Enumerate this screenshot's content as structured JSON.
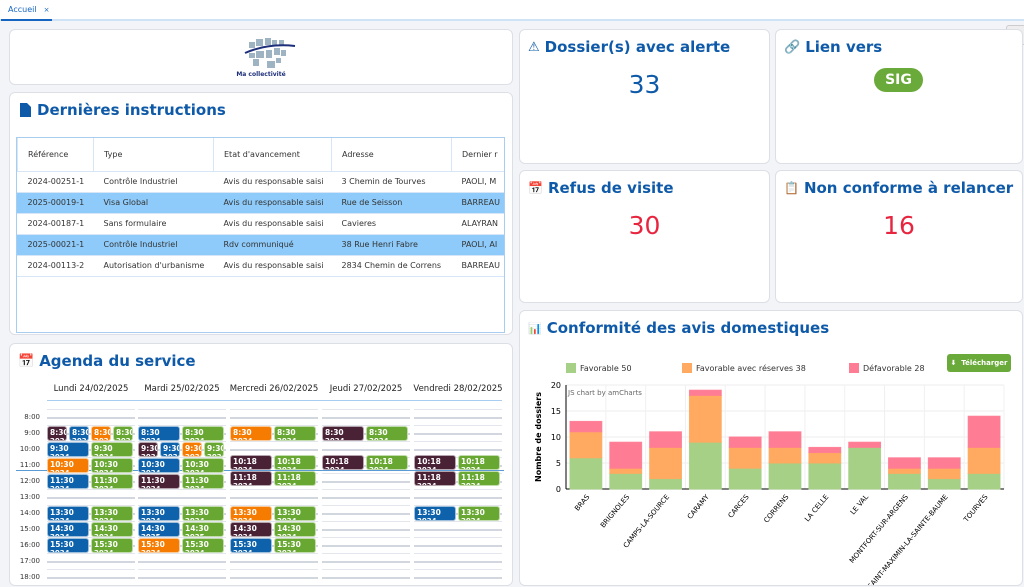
{
  "tabs": [
    {
      "label": "Accueil",
      "close": "×"
    }
  ],
  "logo": {
    "text": "Ma collectivité"
  },
  "instructions": {
    "title": "Dernières instructions",
    "columns": [
      "Référence",
      "Type",
      "Etat d'avancement",
      "Adresse",
      "Dernier r"
    ],
    "rows": [
      {
        "cells": [
          "2024-00251-1",
          "Contrôle Industriel",
          "Avis du responsable saisi",
          "3 Chemin de Tourves",
          "PAOLI, M"
        ],
        "selected": false
      },
      {
        "cells": [
          "2025-00019-1",
          "Visa Global",
          "Avis du responsable saisi",
          "Rue de Seisson",
          "BARREAU"
        ],
        "selected": true
      },
      {
        "cells": [
          "2024-00187-1",
          "Sans formulaire",
          "Avis du responsable saisi",
          "Cavieres",
          "ALAYRAN"
        ],
        "selected": false
      },
      {
        "cells": [
          "2025-00021-1",
          "Contrôle Industriel",
          "Rdv communiqué",
          "38 Rue Henri Fabre",
          "PAOLI, AI"
        ],
        "selected": true
      },
      {
        "cells": [
          "2024-00113-2",
          "Autorisation d'urbanisme",
          "Avis du responsable saisi",
          "2834 Chemin de Correns",
          "BARREAU"
        ],
        "selected": false
      }
    ]
  },
  "alerts": {
    "title": "Dossier(s) avec alerte",
    "value": "33",
    "color": "#0f5aa8"
  },
  "link": {
    "title": "Lien vers",
    "button": "SIG"
  },
  "refus": {
    "title": "Refus de visite",
    "value": "30",
    "color": "#e8253f"
  },
  "nonconforme": {
    "title": "Non conforme à relancer",
    "value": "16",
    "color": "#e8253f"
  },
  "agenda": {
    "title": "Agenda du service",
    "hours": [
      "8:00",
      "9:00",
      "10:00",
      "11:00",
      "12:00",
      "13:00",
      "14:00",
      "15:00",
      "16:00",
      "17:00",
      "18:00"
    ],
    "colors": {
      "dark": "#4a2236",
      "blue": "#0d62ab",
      "orange": "#f57c00",
      "green": "#68a832"
    },
    "days": [
      {
        "label": "Lundi 24/02/2025",
        "events": [
          [
            "8:30",
            "dark",
            "2024..."
          ],
          [
            "8:30",
            "blue",
            "2024..."
          ],
          [
            "8:30",
            "orange",
            "2024..."
          ],
          [
            "8:30",
            "green",
            "2024..."
          ],
          [
            "9:30",
            "blue",
            "2024..."
          ],
          [
            "9:30",
            "green",
            "2024..."
          ],
          [
            "10:30",
            "orange",
            "2024..."
          ],
          [
            "10:30",
            "green",
            "2024..."
          ],
          [
            "11:30",
            "blue",
            "2024..."
          ],
          [
            "11:30",
            "green",
            "2024..."
          ],
          [
            "13:30",
            "blue",
            "2024..."
          ],
          [
            "13:30",
            "green",
            "2024..."
          ],
          [
            "14:30",
            "blue",
            "2024..."
          ],
          [
            "14:30",
            "green",
            "2024..."
          ],
          [
            "15:30",
            "blue",
            "2024..."
          ],
          [
            "15:30",
            "green",
            "2024..."
          ]
        ]
      },
      {
        "label": "Mardi 25/02/2025",
        "events": [
          [
            "8:30",
            "blue",
            "2024..."
          ],
          [
            "8:30",
            "green",
            "2024..."
          ],
          [
            "9:30",
            "dark",
            "2024..."
          ],
          [
            "9:30",
            "blue",
            "2024..."
          ],
          [
            "9:30",
            "orange",
            "2024..."
          ],
          [
            "9:30",
            "green",
            "2024..."
          ],
          [
            "10:30",
            "blue",
            "2024..."
          ],
          [
            "10:30",
            "green",
            "2024..."
          ],
          [
            "11:30",
            "dark",
            "2024..."
          ],
          [
            "11:30",
            "green",
            "2024..."
          ],
          [
            "13:30",
            "blue",
            "2024..."
          ],
          [
            "13:30",
            "green",
            "2024..."
          ],
          [
            "14:30",
            "blue",
            "2025..."
          ],
          [
            "14:30",
            "green",
            "2025..."
          ],
          [
            "15:30",
            "orange",
            "2024..."
          ],
          [
            "15:30",
            "green",
            "2024..."
          ]
        ]
      },
      {
        "label": "Mercredi 26/02/2025",
        "events": [
          [
            "8:30",
            "orange",
            "2024..."
          ],
          [
            "8:30",
            "green",
            "2024..."
          ],
          [
            "10:18",
            "dark",
            "2024..."
          ],
          [
            "10:18",
            "green",
            "2024..."
          ],
          [
            "11:18",
            "dark",
            "2024..."
          ],
          [
            "11:18",
            "green",
            "2024..."
          ],
          [
            "13:30",
            "orange",
            "2024..."
          ],
          [
            "13:30",
            "green",
            "2024..."
          ],
          [
            "14:30",
            "dark",
            "2024..."
          ],
          [
            "14:30",
            "green",
            "2024..."
          ],
          [
            "15:30",
            "blue",
            "2024..."
          ],
          [
            "15:30",
            "green",
            "2024..."
          ]
        ]
      },
      {
        "label": "Jeudi 27/02/2025",
        "events": [
          [
            "8:30",
            "dark",
            "2024..."
          ],
          [
            "8:30",
            "green",
            "2024..."
          ],
          [
            "10:18",
            "dark",
            "2024..."
          ],
          [
            "10:18",
            "green",
            "2024..."
          ]
        ]
      },
      {
        "label": "Vendredi 28/02/2025",
        "events": [
          [
            "10:18",
            "dark",
            "2024..."
          ],
          [
            "10:18",
            "green",
            "2024..."
          ],
          [
            "11:18",
            "dark",
            "2024..."
          ],
          [
            "11:18",
            "green",
            "2024..."
          ],
          [
            "13:30",
            "blue",
            "2024..."
          ],
          [
            "13:30",
            "green",
            "2024..."
          ]
        ]
      }
    ]
  },
  "conformite": {
    "title": "Conformité des avis domestiques",
    "download": "Télécharger",
    "credit": "JS chart by amCharts"
  },
  "chart_data": {
    "type": "bar",
    "stacked": true,
    "categories": [
      "BRAS",
      "BRIGNOLES",
      "CAMPS-LA-SOURCE",
      "CARAMY",
      "CARCES",
      "CORRENS",
      "LA CELLE",
      "LE VAL",
      "MONTFORT-SUR-ARGENS",
      "SAINT-MAXIMIN-LA-SAINTE-BAUME",
      "TOURVES"
    ],
    "series": [
      {
        "name": "Favorable",
        "legend": "Favorable 50",
        "color": "#a5d086",
        "values": [
          6,
          3,
          2,
          9,
          4,
          5,
          5,
          8,
          3,
          2,
          3
        ]
      },
      {
        "name": "Favorable avec réserves",
        "legend": "Favorable avec réserves 38",
        "color": "#ffaa60",
        "values": [
          5,
          1,
          6,
          9,
          4,
          3,
          2,
          0,
          1,
          2,
          5
        ]
      },
      {
        "name": "Défavorable",
        "legend": "Défavorable 28",
        "color": "#ff7d94",
        "values": [
          2,
          5,
          3,
          1,
          2,
          3,
          1,
          1,
          2,
          2,
          6
        ]
      }
    ],
    "ylabel": "Nombre de dossiers",
    "ylim": [
      0,
      20
    ],
    "yticks": [
      "0",
      "5",
      "10",
      "15",
      "20"
    ],
    "grid": true,
    "legend": "top"
  }
}
